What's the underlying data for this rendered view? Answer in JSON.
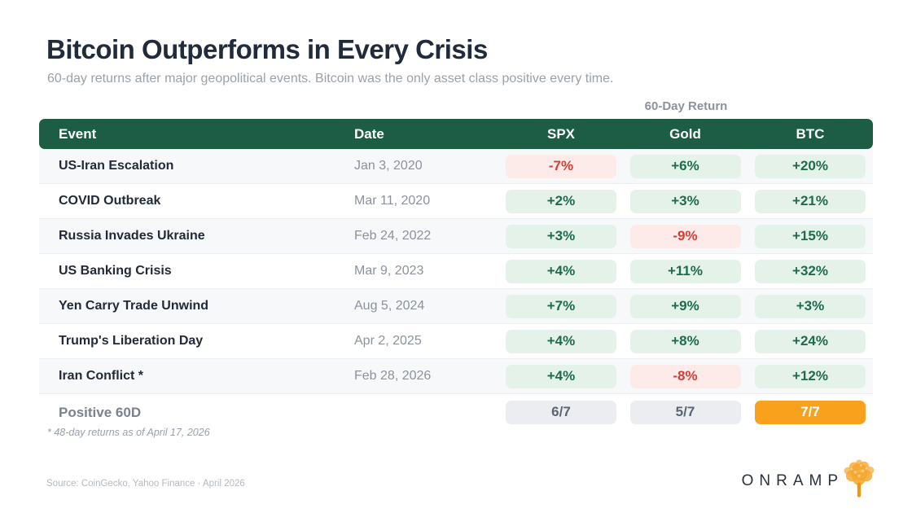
{
  "page": {
    "title": "Bitcoin Outperforms in Every Crisis",
    "subtitle": "60-day returns after major geopolitical events. Bitcoin was the only asset class positive every time.",
    "source": "Source: CoinGecko, Yahoo Finance · April 2026",
    "logo_text": "ONRAMP",
    "logo_icon": "tree-icon"
  },
  "colors": {
    "header_bg": "#1d5c45",
    "positive_bg": "#e5f2ea",
    "positive_text": "#1e6b4d",
    "negative_bg": "#fcebe9",
    "negative_text": "#d23f38",
    "neutral_bg": "#ebedf0",
    "neutral_text": "#5b6472",
    "highlight_bg": "#f9a11c",
    "highlight_text": "#ffffff",
    "accent_orange": "#f5a833"
  },
  "chart_data": {
    "type": "table",
    "title": "Bitcoin Outperforms in Every Crisis",
    "group_header": "60-Day Return",
    "columns": [
      "Event",
      "Date",
      "SPX",
      "Gold",
      "BTC"
    ],
    "rows": [
      {
        "event": "US-Iran Escalation",
        "date": "Jan 3, 2020",
        "spx": "-7%",
        "gold": "+6%",
        "btc": "+20%"
      },
      {
        "event": "COVID Outbreak",
        "date": "Mar 11, 2020",
        "spx": "+2%",
        "gold": "+3%",
        "btc": "+21%"
      },
      {
        "event": "Russia Invades Ukraine",
        "date": "Feb 24, 2022",
        "spx": "+3%",
        "gold": "-9%",
        "btc": "+15%"
      },
      {
        "event": "US Banking Crisis",
        "date": "Mar 9, 2023",
        "spx": "+4%",
        "gold": "+11%",
        "btc": "+32%"
      },
      {
        "event": "Yen Carry Trade Unwind",
        "date": "Aug 5, 2024",
        "spx": "+7%",
        "gold": "+9%",
        "btc": "+3%"
      },
      {
        "event": "Trump's Liberation Day",
        "date": "Apr 2, 2025",
        "spx": "+4%",
        "gold": "+8%",
        "btc": "+24%"
      },
      {
        "event": "Iran Conflict *",
        "date": "Feb 28, 2026",
        "spx": "+4%",
        "gold": "-8%",
        "btc": "+12%"
      }
    ],
    "summary": {
      "label": "Positive 60D",
      "spx": "6/7",
      "gold": "5/7",
      "btc": "7/7",
      "btc_highlight": true
    },
    "footnote": "* 48-day returns as of April 17, 2026"
  }
}
